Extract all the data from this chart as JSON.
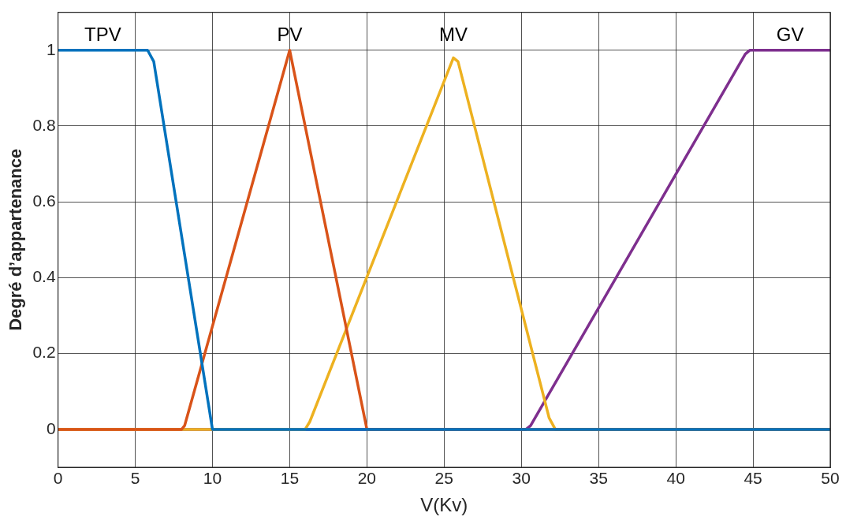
{
  "chart_data": {
    "type": "line",
    "xlabel": "V(Kv)",
    "ylabel": "Degré d’appartenance",
    "xlim": [
      0,
      50
    ],
    "xticks": [
      0,
      5,
      10,
      15,
      20,
      25,
      30,
      35,
      40,
      45,
      50
    ],
    "ylim": [
      -0.1,
      1.1
    ],
    "yticks": [
      0,
      0.2,
      0.4,
      0.6,
      0.8,
      1
    ],
    "grid": true,
    "legend": false,
    "marker": "none",
    "line_style": "solid",
    "series": [
      {
        "name": "TPV",
        "color": "#0072bd",
        "x": [
          0,
          5.8,
          6.2,
          10,
          50
        ],
        "values": [
          1,
          1,
          0.97,
          0,
          0
        ]
      },
      {
        "name": "PV",
        "color": "#d95319",
        "x": [
          0,
          8,
          8.2,
          15,
          20,
          50
        ],
        "values": [
          0,
          0,
          0.01,
          1,
          0,
          0
        ]
      },
      {
        "name": "MV",
        "color": "#edb120",
        "x": [
          0,
          16,
          16.3,
          25.6,
          25.9,
          31.8,
          32.2,
          50
        ],
        "values": [
          0,
          0,
          0.02,
          0.98,
          0.97,
          0.03,
          0,
          0
        ]
      },
      {
        "name": "GV",
        "color": "#7e2f8e",
        "x": [
          0,
          30.3,
          30.6,
          44.5,
          44.8,
          50
        ],
        "values": [
          0,
          0,
          0.01,
          0.99,
          1,
          1
        ]
      }
    ]
  }
}
